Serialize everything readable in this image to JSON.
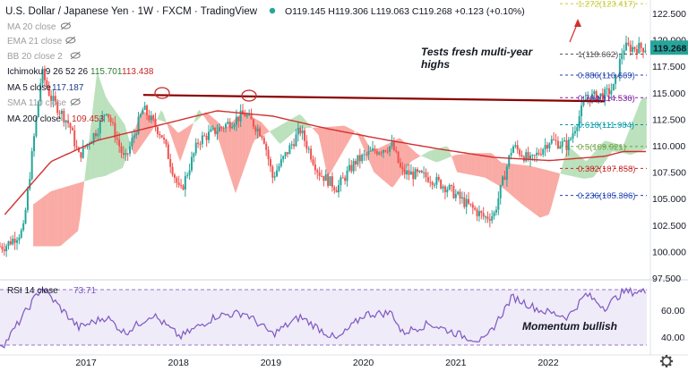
{
  "header": {
    "title": "U.S. Dollar / Japanese Yen · 1W · FXCM · TradingView",
    "ohlc": "O119.145 H119.306 L119.063 C119.268 +0.123 (+0.10%)",
    "status_color": "#26a69a"
  },
  "indicators": [
    {
      "label": "MA 20 close",
      "color": "#9e9e9e",
      "icon": "eye-off-icon"
    },
    {
      "label": "EMA 21 close",
      "color": "#9e9e9e",
      "icon": "eye-off-icon"
    },
    {
      "label": "BB 20 close 2",
      "color": "#9e9e9e",
      "icon": "eye-off-icon"
    },
    {
      "label": "Ichimoku 9 26 52 26",
      "values": [
        "115.701",
        "113.438"
      ],
      "value_colors": [
        "#2e7d32",
        "#c62828"
      ],
      "color": "#131722"
    },
    {
      "label": "MA 5 close",
      "values": [
        "117.187"
      ],
      "value_colors": [
        "#1e3a8a"
      ],
      "color": "#131722"
    },
    {
      "label": "SMA 110 close",
      "color": "#9e9e9e",
      "icon": "eye-off-icon"
    },
    {
      "label": "MA 200 close",
      "values": [
        "109.453"
      ],
      "value_colors": [
        "#c62828"
      ],
      "color": "#131722"
    }
  ],
  "annotations": {
    "tests_high": "Tests fresh multi-year highs",
    "momentum": "Momentum bullish"
  },
  "price_axis": {
    "ticks": [
      "122.500",
      "120.000",
      "117.500",
      "115.000",
      "112.500",
      "110.000",
      "107.500",
      "105.000",
      "102.500",
      "100.000",
      "97.500"
    ],
    "current": "119.268"
  },
  "rsi": {
    "label": "RSI 14 close",
    "value": "73.71",
    "ticks": [
      "60.00",
      "40.00"
    ]
  },
  "time_axis": [
    "2017",
    "2018",
    "2019",
    "2020",
    "2021",
    "2022"
  ],
  "fib_levels": [
    {
      "level": 1.272,
      "label": "1.272(123.417)",
      "price": 123.417,
      "color": "#c9c93a"
    },
    {
      "level": 1,
      "label": "1(118.662)",
      "price": 118.662,
      "color": "#555555"
    },
    {
      "level": 0.886,
      "label": "0.886(116.669)",
      "price": 116.669,
      "color": "#1e40af"
    },
    {
      "level": 0.764,
      "label": "0.764(114.536)",
      "price": 114.536,
      "color": "#7b1fa2"
    },
    {
      "level": 0.618,
      "label": "0.618(111.984)",
      "price": 111.984,
      "color": "#0097a7"
    },
    {
      "level": 0.5,
      "label": "0.5(109.921)",
      "price": 109.921,
      "color": "#689f38"
    },
    {
      "level": 0.382,
      "label": "0.382(107.858)",
      "price": 107.858,
      "color": "#c62828"
    },
    {
      "level": 0.236,
      "label": "0.236(105.306)",
      "price": 105.306,
      "color": "#1e40af"
    }
  ],
  "settings_icon": "gear-icon",
  "chart_data": {
    "type": "line",
    "title": "U.S. Dollar / Japanese Yen · 1W · FXCM · TradingView",
    "xlabel": "",
    "ylabel": "",
    "ylim": [
      97.5,
      122.5
    ],
    "grid": false,
    "series": [
      {
        "name": "",
        "x": [
          "2016-08",
          "2016-10",
          "2016-12",
          "2017-01",
          "2017-03",
          "2017-04",
          "2017-06",
          "2017-07",
          "2017-09",
          "2017-11",
          "2018-01",
          "2018-03",
          "2018-05",
          "2018-07",
          "2018-10",
          "2018-12",
          "2019-01",
          "2019-04",
          "2019-06",
          "2019-08",
          "2019-10",
          "2019-12",
          "2020-02",
          "2020-03",
          "2020-06",
          "2020-08",
          "2020-10",
          "2020-12",
          "2021-01",
          "2021-03",
          "2021-05",
          "2021-07",
          "2021-09",
          "2021-11",
          "2022-01",
          "2022-02",
          "2022-03"
        ],
        "values": [
          100.5,
          102.0,
          117.0,
          114.5,
          112.0,
          109.0,
          111.5,
          113.5,
          108.5,
          113.5,
          111.0,
          105.5,
          110.5,
          111.5,
          113.0,
          111.0,
          107.0,
          111.5,
          107.5,
          106.0,
          108.5,
          109.5,
          110.0,
          107.5,
          107.0,
          106.0,
          104.5,
          103.2,
          103.5,
          110.0,
          108.5,
          110.5,
          110.0,
          114.5,
          114.8,
          115.5,
          119.268
        ]
      },
      {
        "name": "MA 200 close",
        "x": [
          "2016-08",
          "2017-01",
          "2017-06",
          "2018-01",
          "2018-07",
          "2019-01",
          "2019-07",
          "2020-01",
          "2020-07",
          "2021-01",
          "2021-07",
          "2022-01",
          "2022-03"
        ],
        "values": [
          103.5,
          108.5,
          110.5,
          112.0,
          113.3,
          112.8,
          111.6,
          110.6,
          109.7,
          108.9,
          108.6,
          109.0,
          109.453
        ]
      }
    ],
    "resistance_line": {
      "from": [
        "2017-11",
        114.8
      ],
      "to": [
        "2022-01",
        114.2
      ]
    },
    "rsi": {
      "ylim": [
        30,
        80
      ],
      "x": [
        "2016-08",
        "2016-12",
        "2017-04",
        "2017-07",
        "2017-09",
        "2017-12",
        "2018-03",
        "2018-07",
        "2018-10",
        "2019-01",
        "2019-04",
        "2019-08",
        "2019-11",
        "2020-02",
        "2020-03",
        "2020-06",
        "2020-10",
        "2020-12",
        "2021-03",
        "2021-06",
        "2021-09",
        "2021-11",
        "2022-01",
        "2022-03"
      ],
      "values": [
        35,
        77,
        47,
        55,
        43,
        57,
        40,
        56,
        58,
        42,
        55,
        38,
        57,
        58,
        43,
        50,
        40,
        37,
        70,
        60,
        55,
        72,
        62,
        73.71
      ]
    }
  }
}
